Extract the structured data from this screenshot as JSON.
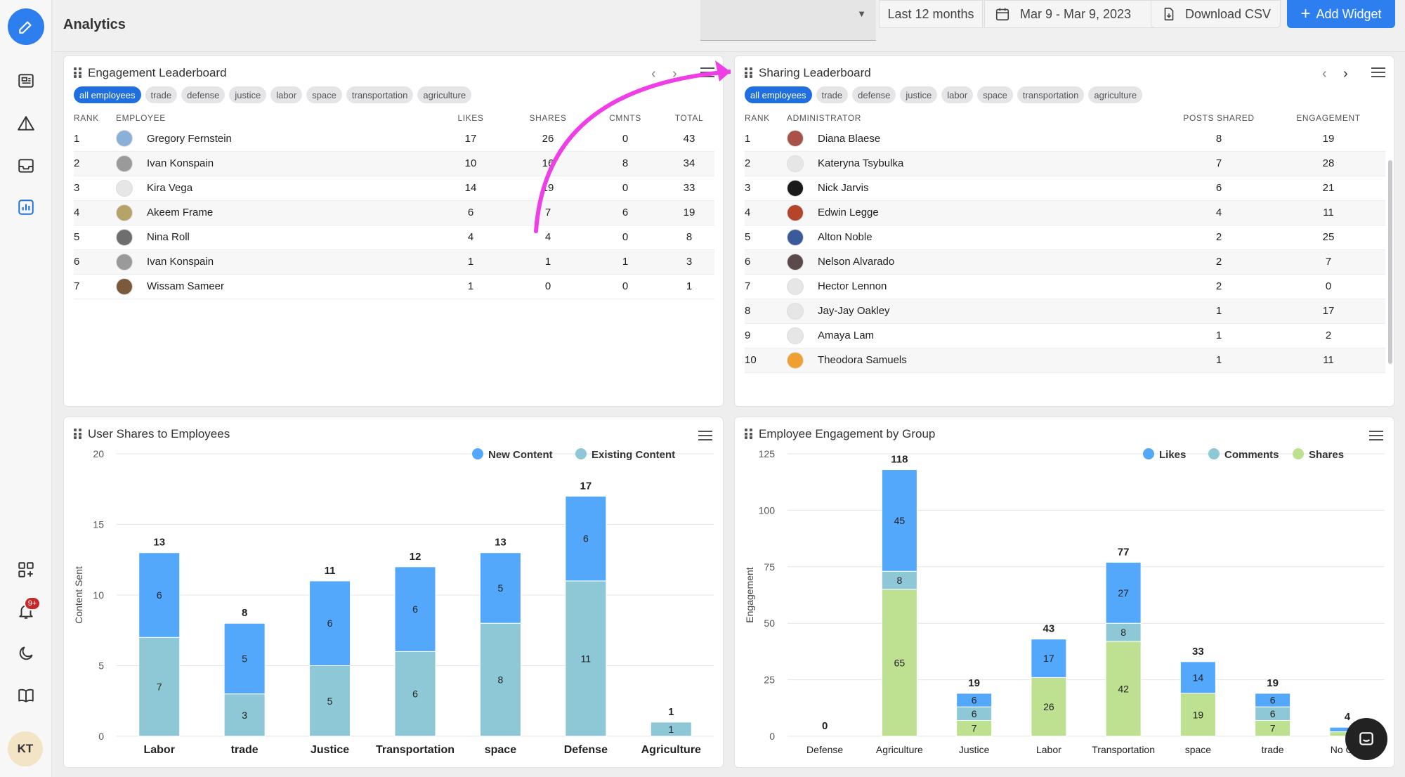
{
  "header": {
    "title": "Analytics",
    "range_label": "Last 12 months",
    "date_range": "Mar 9 - Mar 9, 2023",
    "download_label": "Download CSV",
    "add_widget_label": "Add Widget"
  },
  "sidebar": {
    "avatar_initials": "KT",
    "notification_count": "9+"
  },
  "colors": {
    "accent": "#2d7ff0",
    "new_content": "#54a8fb",
    "existing_content": "#8ec7d5",
    "likes": "#54a8fb",
    "comments": "#8ec7d5",
    "shares": "#bde190"
  },
  "tags": [
    "all employees",
    "trade",
    "defense",
    "justice",
    "labor",
    "space",
    "transportation",
    "agriculture"
  ],
  "engagement": {
    "title": "Engagement Leaderboard",
    "columns": [
      "RANK",
      "EMPLOYEE",
      "LIKES",
      "SHARES",
      "CMNTS",
      "TOTAL"
    ],
    "rows": [
      {
        "rank": "1",
        "name": "Gregory Fernstein",
        "likes": "17",
        "shares": "26",
        "cmnts": "0",
        "total": "43",
        "avatar": "#8ab0d8"
      },
      {
        "rank": "2",
        "name": "Ivan Konspain",
        "likes": "10",
        "shares": "16",
        "cmnts": "8",
        "total": "34",
        "avatar": "#9a9a9a"
      },
      {
        "rank": "3",
        "name": "Kira Vega",
        "likes": "14",
        "shares": "19",
        "cmnts": "0",
        "total": "33",
        "avatar": "#e6e6e6"
      },
      {
        "rank": "4",
        "name": "Akeem Frame",
        "likes": "6",
        "shares": "7",
        "cmnts": "6",
        "total": "19",
        "avatar": "#b5a36a"
      },
      {
        "rank": "5",
        "name": "Nina Roll",
        "likes": "4",
        "shares": "4",
        "cmnts": "0",
        "total": "8",
        "avatar": "#6e6e6e"
      },
      {
        "rank": "6",
        "name": "Ivan Konspain",
        "likes": "1",
        "shares": "1",
        "cmnts": "1",
        "total": "3",
        "avatar": "#9a9a9a"
      },
      {
        "rank": "7",
        "name": "Wissam Sameer",
        "likes": "1",
        "shares": "0",
        "cmnts": "0",
        "total": "1",
        "avatar": "#7a5a3a"
      }
    ]
  },
  "sharing": {
    "title": "Sharing Leaderboard",
    "columns": [
      "RANK",
      "ADMINISTRATOR",
      "POSTS SHARED",
      "ENGAGEMENT"
    ],
    "rows": [
      {
        "rank": "1",
        "name": "Diana Blaese",
        "posts": "8",
        "engagement": "19",
        "avatar": "#a8524a"
      },
      {
        "rank": "2",
        "name": "Kateryna Tsybulka",
        "posts": "7",
        "engagement": "28",
        "avatar": "#e6e6e6"
      },
      {
        "rank": "3",
        "name": "Nick Jarvis",
        "posts": "6",
        "engagement": "21",
        "avatar": "#1a1a1a"
      },
      {
        "rank": "4",
        "name": "Edwin Legge",
        "posts": "4",
        "engagement": "11",
        "avatar": "#b5452a"
      },
      {
        "rank": "5",
        "name": "Alton Noble",
        "posts": "2",
        "engagement": "25",
        "avatar": "#3a5a9a"
      },
      {
        "rank": "6",
        "name": "Nelson Alvarado",
        "posts": "2",
        "engagement": "7",
        "avatar": "#5a4a4a"
      },
      {
        "rank": "7",
        "name": "Hector Lennon",
        "posts": "2",
        "engagement": "0",
        "avatar": "#e6e6e6"
      },
      {
        "rank": "8",
        "name": "Jay-Jay Oakley",
        "posts": "1",
        "engagement": "17",
        "avatar": "#e6e6e6"
      },
      {
        "rank": "9",
        "name": "Amaya Lam",
        "posts": "1",
        "engagement": "2",
        "avatar": "#e6e6e6"
      },
      {
        "rank": "10",
        "name": "Theodora Samuels",
        "posts": "1",
        "engagement": "11",
        "avatar": "#f0a030"
      }
    ]
  },
  "shares_widget": {
    "title": "User Shares to Employees"
  },
  "group_widget": {
    "title": "Employee Engagement by Group"
  },
  "chart_data": [
    {
      "type": "bar",
      "stacked": true,
      "title": "User Shares to Employees",
      "ylabel": "Content Sent",
      "ylim": [
        0,
        20
      ],
      "yticks": [
        0,
        5,
        10,
        15,
        20
      ],
      "categories": [
        "Labor",
        "trade",
        "Justice",
        "Transportation",
        "space",
        "Defense",
        "Agriculture"
      ],
      "series": [
        {
          "name": "Existing Content",
          "values": [
            7,
            3,
            5,
            6,
            8,
            11,
            1
          ]
        },
        {
          "name": "New Content",
          "values": [
            6,
            5,
            6,
            6,
            5,
            6,
            0
          ]
        }
      ],
      "totals": [
        13,
        8,
        11,
        12,
        13,
        17,
        1
      ],
      "legend": "top-right"
    },
    {
      "type": "bar",
      "stacked": true,
      "title": "Employee Engagement by Group",
      "ylabel": "Engagement",
      "ylim": [
        0,
        125
      ],
      "yticks": [
        0,
        25,
        50,
        75,
        100,
        125
      ],
      "categories": [
        "Defense",
        "Agriculture",
        "Justice",
        "Labor",
        "Transportation",
        "space",
        "trade",
        "No Gr..."
      ],
      "series": [
        {
          "name": "Shares",
          "values": [
            0,
            65,
            7,
            26,
            42,
            19,
            7,
            2
          ]
        },
        {
          "name": "Comments",
          "values": [
            0,
            8,
            6,
            0,
            8,
            0,
            6,
            0
          ]
        },
        {
          "name": "Likes",
          "values": [
            0,
            45,
            6,
            17,
            27,
            14,
            6,
            2
          ]
        }
      ],
      "totals": [
        0,
        118,
        19,
        43,
        77,
        33,
        19,
        4
      ],
      "legend": "top-right"
    }
  ]
}
